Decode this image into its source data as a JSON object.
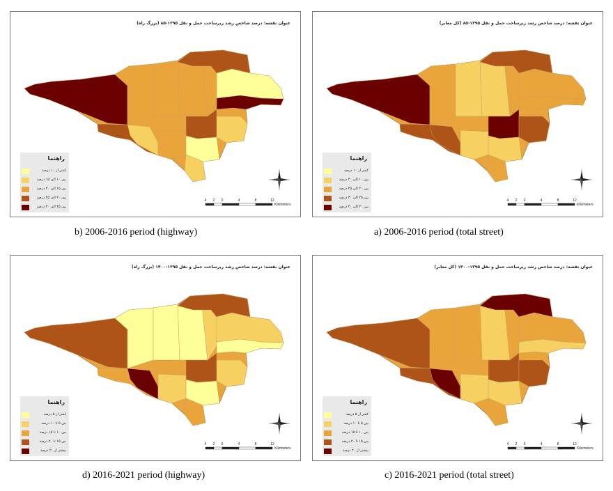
{
  "colors": {
    "c1": "#ffff99",
    "c2": "#f6d060",
    "c3": "#e9a53b",
    "c4": "#ae5418",
    "c5": "#6b0000"
  },
  "legend_title": "راهنما",
  "scale": {
    "ticks": [
      "4",
      "2",
      "0",
      "4",
      "8",
      "12"
    ],
    "unit": "Kilometers"
  },
  "panels": [
    {
      "id": "b",
      "title": "عنوان نقشه: درصد شاخص رشد زیرساخت حمل و نقل ۱۳۹۵-۸۵ (بزرگ راه)",
      "caption": "b) 2006-2016 period (highway)",
      "legend": [
        "کمتر از ۱۰ درصد",
        "بین ۱۰ الی ۱۵ درصد",
        "بین ۱۵ الی ۲۰ درصد",
        "بین ۲۰ الی ۲۵ درصد",
        "بین ۲۵ الی ۴۰ درصد"
      ],
      "fills": [
        "c5",
        "c4",
        "c3",
        "c3",
        "c3",
        "c3",
        "c4",
        "c1",
        "c5",
        "c4",
        "c2",
        "c3",
        "c1",
        "c2",
        "c2"
      ]
    },
    {
      "id": "a",
      "title": "عنوان نقشه: درصد شاخص رشد زیرساخت حمل و نقل ۱۳۹۵-۸۵ (کل معابر)",
      "caption": "a) 2006-2016 period (total street)",
      "legend": [
        "کمتر از ۱۰ درصد",
        "بین ۱۰ الی ۲۰ درصد",
        "بین ۲۰ الی ۲۵ درصد",
        "بین ۲۵ الی ۳۰ درصد",
        "بین ۳۰ الی ۴۰ درصد"
      ],
      "fills": [
        "c5",
        "c4",
        "c3",
        "c2",
        "c2",
        "c3",
        "c4",
        "c3",
        "c3",
        "c5",
        "c4",
        "c2",
        "c2",
        "c3",
        "c4"
      ]
    },
    {
      "id": "d",
      "title": "عنوان نقشه: درصد شاخص رشد زیرساخت حمل و نقل ۱۳۹۵-۱۴۰۰ (بزرگ راه)",
      "caption": "d) 2016-2021 period (highway)",
      "legend": [
        "کمتر از ۵ درصد",
        "بین ۵ تا ۱۰ درصد",
        "بین ۱۰ تا ۱۵ درصد",
        "بین ۱۵ تا ۲۰ درصد",
        "بیشتر از ۲۰ درصد"
      ],
      "fills": [
        "c4",
        "c3",
        "c1",
        "c1",
        "c1",
        "c2",
        "c4",
        "c2",
        "c1",
        "c4",
        "c5",
        "c2",
        "c1",
        "c3",
        "c2"
      ]
    },
    {
      "id": "c",
      "title": "عنوان نقشه: درصد شاخص رشد زیرساخت حمل و نقل ۱۳۹۵-۱۴۰۰ (کل معابر)",
      "caption": "c) 2016-2021 period (total street)",
      "legend": [
        "کمتر از ۵ درصد",
        "بین ۵ تا ۱۰ درصد",
        "بین ۱۰ تا ۱۵ درصد",
        "بین ۱۵ تا ۲۰ درصد",
        "بیشتر از ۲۰ درصد"
      ],
      "fills": [
        "c4",
        "c4",
        "c3",
        "c3",
        "c2",
        "c3",
        "c5",
        "c3",
        "c2",
        "c4",
        "c5",
        "c2",
        "c2",
        "c3",
        "c4"
      ]
    }
  ]
}
